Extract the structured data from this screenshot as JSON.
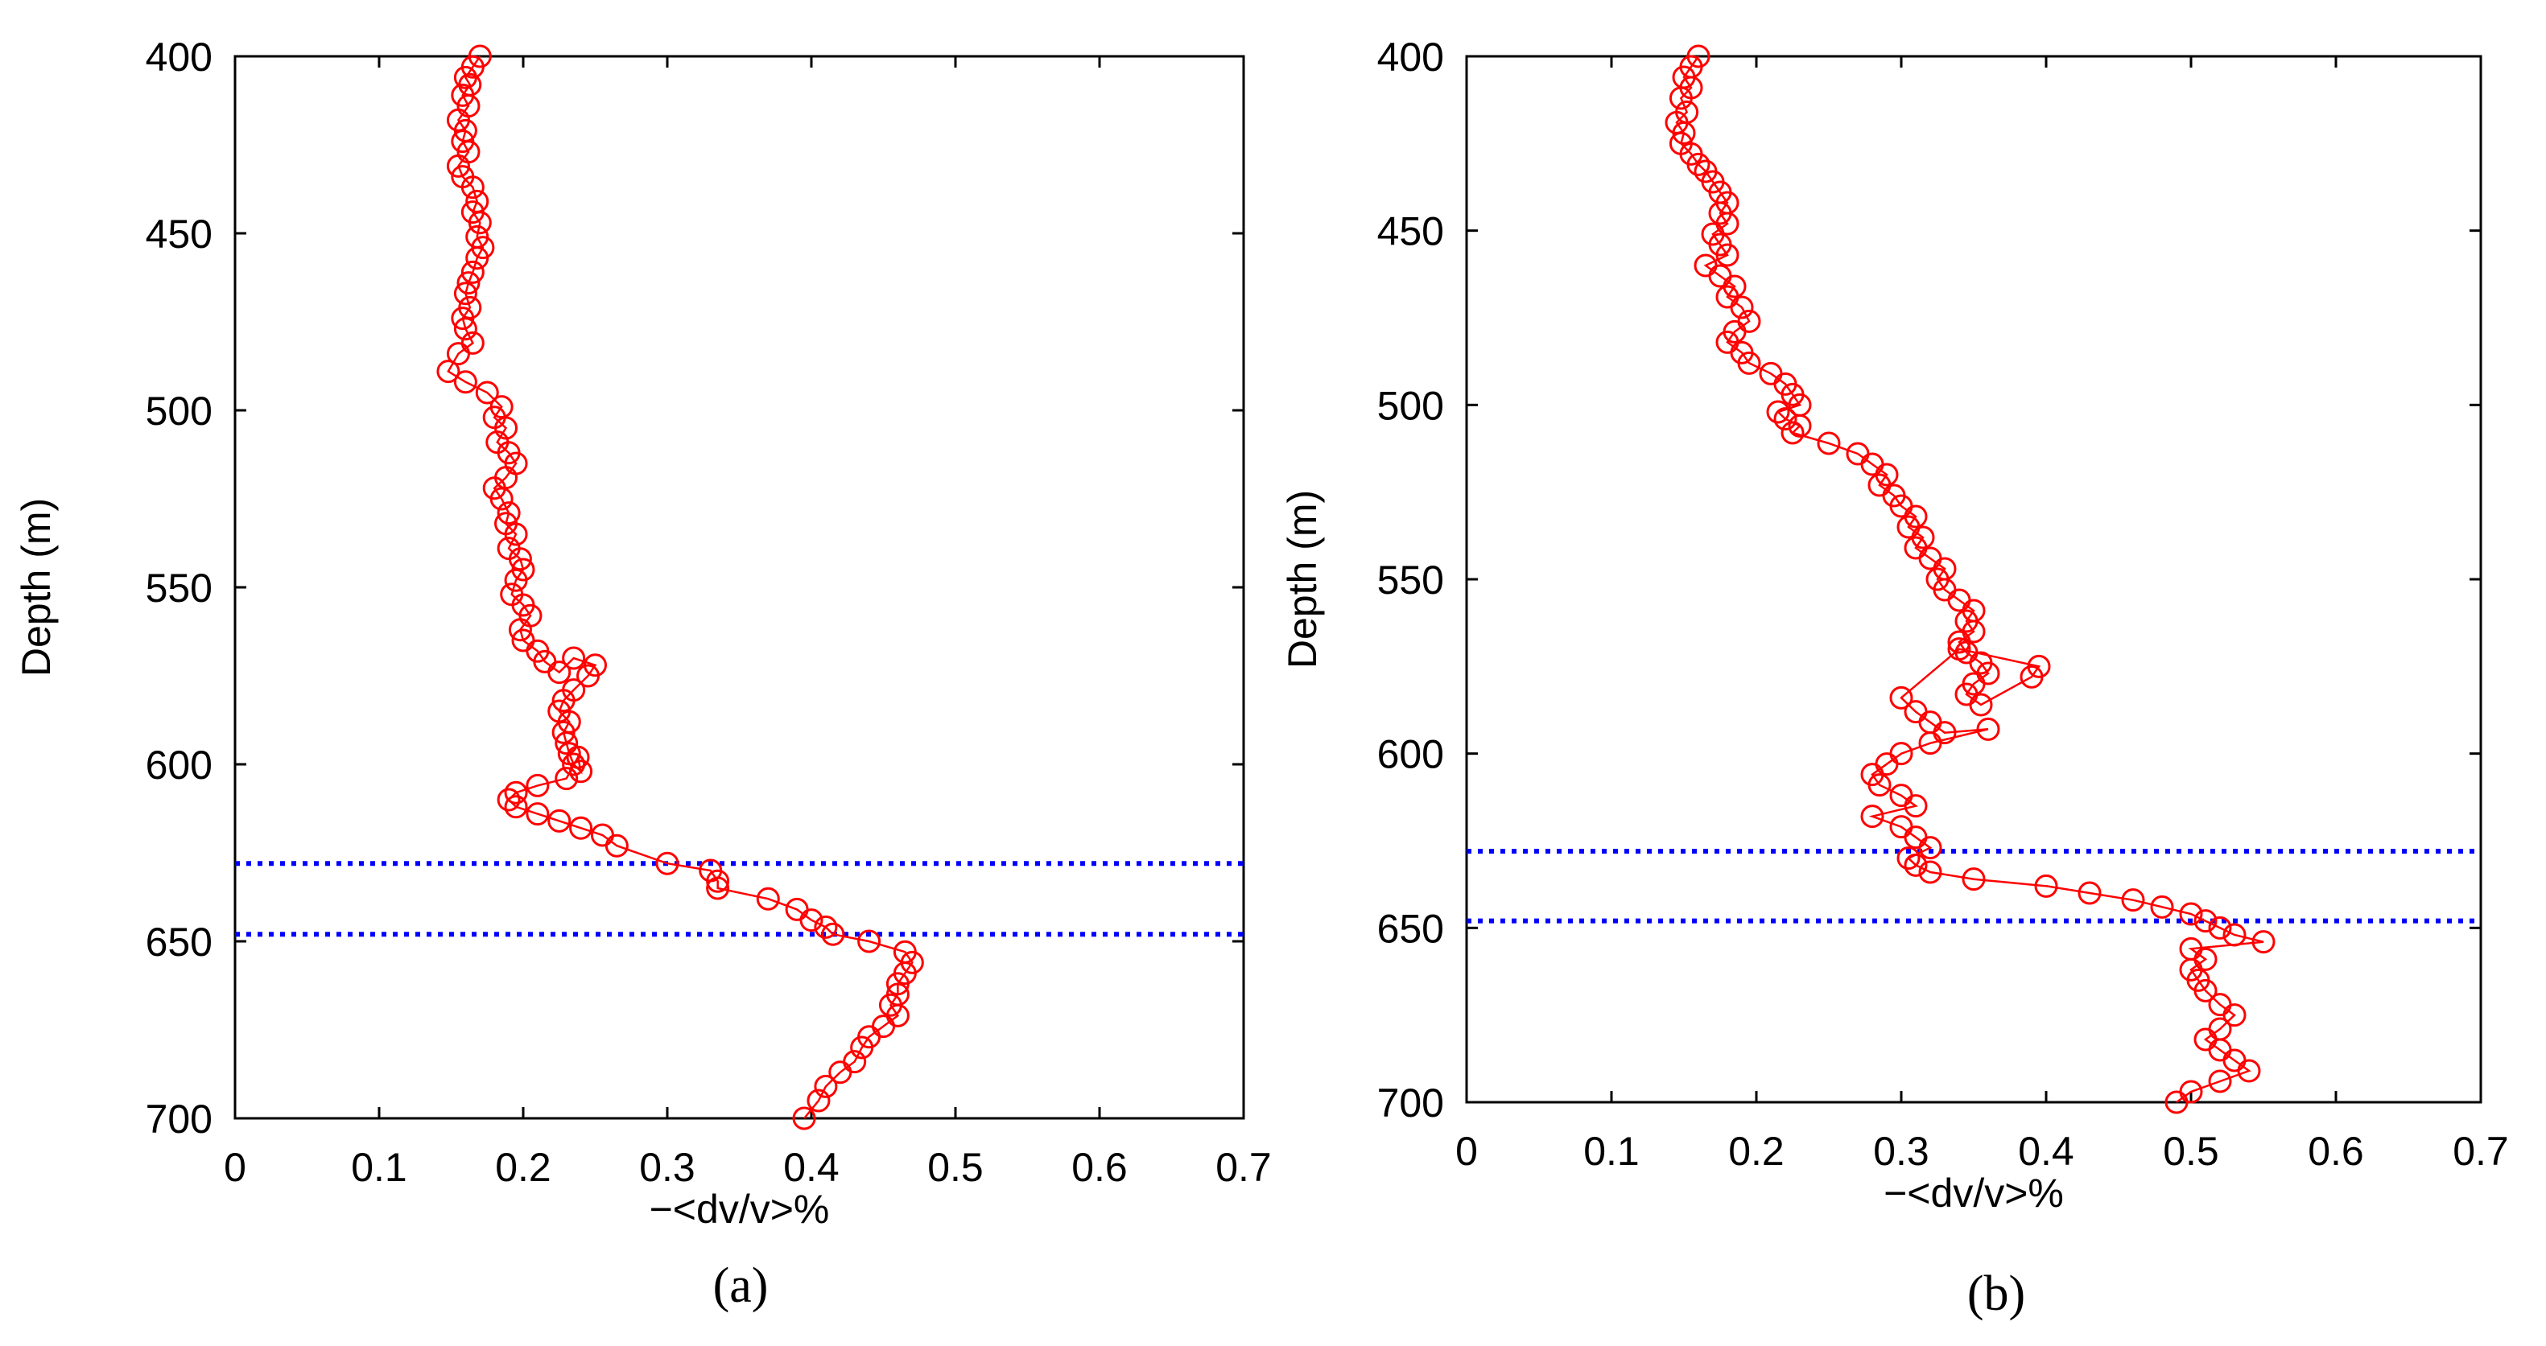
{
  "chart_data": [
    {
      "panel": "(a)",
      "type": "line",
      "marker": "circle",
      "series_color": "#ff0000",
      "reference_line_color": "#0000ff",
      "xlabel": "−<dv/v>%",
      "ylabel": "Depth (m)",
      "xlim": [
        0,
        0.7
      ],
      "ylim": [
        400,
        700
      ],
      "y_reversed": true,
      "xticks": [
        "0",
        "0.1",
        "0.2",
        "0.3",
        "0.4",
        "0.5",
        "0.6",
        "0.7"
      ],
      "yticks": [
        "400",
        "450",
        "500",
        "550",
        "600",
        "650",
        "700"
      ],
      "reference_depths": [
        628,
        648
      ],
      "x": [
        0.17,
        0.165,
        0.16,
        0.163,
        0.158,
        0.162,
        0.155,
        0.16,
        0.158,
        0.162,
        0.155,
        0.158,
        0.165,
        0.168,
        0.165,
        0.17,
        0.168,
        0.172,
        0.168,
        0.165,
        0.162,
        0.16,
        0.163,
        0.158,
        0.16,
        0.165,
        0.155,
        0.148,
        0.16,
        0.175,
        0.185,
        0.18,
        0.188,
        0.182,
        0.19,
        0.195,
        0.188,
        0.18,
        0.185,
        0.19,
        0.188,
        0.195,
        0.19,
        0.198,
        0.2,
        0.195,
        0.192,
        0.2,
        0.205,
        0.198,
        0.2,
        0.21,
        0.215,
        0.225,
        0.235,
        0.25,
        0.245,
        0.235,
        0.228,
        0.225,
        0.232,
        0.228,
        0.23,
        0.232,
        0.235,
        0.24,
        0.238,
        0.23,
        0.21,
        0.195,
        0.19,
        0.195,
        0.21,
        0.225,
        0.24,
        0.255,
        0.265,
        0.3,
        0.33,
        0.335,
        0.335,
        0.37,
        0.39,
        0.4,
        0.41,
        0.415,
        0.44,
        0.465,
        0.47,
        0.465,
        0.46,
        0.46,
        0.455,
        0.46,
        0.45,
        0.44,
        0.435,
        0.43,
        0.42,
        0.41,
        0.405,
        0.395
      ],
      "y": [
        400,
        403,
        406,
        408,
        411,
        414,
        418,
        421,
        424,
        427,
        431,
        434,
        437,
        441,
        444,
        447,
        451,
        454,
        457,
        461,
        464,
        467,
        471,
        474,
        477,
        481,
        484,
        489,
        492,
        495,
        499,
        502,
        505,
        509,
        512,
        515,
        519,
        522,
        525,
        529,
        532,
        535,
        539,
        542,
        545,
        548,
        552,
        555,
        558,
        562,
        565,
        568,
        571,
        574,
        570,
        572,
        575,
        579,
        582,
        585,
        588,
        591,
        594,
        597,
        600,
        602,
        598,
        604,
        606,
        608,
        610,
        612,
        614,
        616,
        618,
        620,
        623,
        628,
        630,
        633,
        635,
        638,
        641,
        644,
        646,
        648,
        650,
        653,
        656,
        659,
        662,
        665,
        668,
        671,
        674,
        677,
        680,
        684,
        687,
        691,
        695,
        700
      ]
    },
    {
      "panel": "(b)",
      "type": "line",
      "marker": "circle",
      "series_color": "#ff0000",
      "reference_line_color": "#0000ff",
      "xlabel": "−<dv/v>%",
      "ylabel": "Depth (m)",
      "xlim": [
        0,
        0.7
      ],
      "ylim": [
        400,
        700
      ],
      "y_reversed": true,
      "xticks": [
        "0",
        "0.1",
        "0.2",
        "0.3",
        "0.4",
        "0.5",
        "0.6",
        "0.7"
      ],
      "yticks": [
        "400",
        "450",
        "500",
        "550",
        "600",
        "650",
        "700"
      ],
      "reference_depths": [
        628,
        648
      ],
      "x": [
        0.16,
        0.155,
        0.15,
        0.155,
        0.148,
        0.152,
        0.145,
        0.15,
        0.148,
        0.155,
        0.16,
        0.165,
        0.17,
        0.175,
        0.18,
        0.175,
        0.18,
        0.17,
        0.175,
        0.18,
        0.165,
        0.175,
        0.185,
        0.18,
        0.19,
        0.195,
        0.185,
        0.18,
        0.19,
        0.195,
        0.21,
        0.22,
        0.225,
        0.23,
        0.215,
        0.22,
        0.23,
        0.225,
        0.25,
        0.27,
        0.28,
        0.29,
        0.285,
        0.295,
        0.3,
        0.31,
        0.305,
        0.315,
        0.31,
        0.32,
        0.33,
        0.325,
        0.33,
        0.34,
        0.35,
        0.345,
        0.35,
        0.34,
        0.345,
        0.355,
        0.36,
        0.35,
        0.345,
        0.355,
        0.39,
        0.395,
        0.34,
        0.3,
        0.31,
        0.32,
        0.33,
        0.36,
        0.32,
        0.3,
        0.29,
        0.28,
        0.285,
        0.3,
        0.31,
        0.28,
        0.3,
        0.31,
        0.32,
        0.305,
        0.31,
        0.32,
        0.35,
        0.4,
        0.43,
        0.46,
        0.48,
        0.5,
        0.51,
        0.52,
        0.53,
        0.55,
        0.5,
        0.51,
        0.5,
        0.505,
        0.51,
        0.52,
        0.53,
        0.52,
        0.51,
        0.52,
        0.53,
        0.54,
        0.52,
        0.5,
        0.49
      ],
      "y": [
        400,
        403,
        406,
        409,
        412,
        416,
        419,
        422,
        425,
        428,
        431,
        433,
        436,
        439,
        442,
        445,
        448,
        451,
        454,
        457,
        460,
        463,
        466,
        469,
        472,
        476,
        479,
        482,
        485,
        488,
        491,
        494,
        497,
        500,
        502,
        504,
        506,
        508,
        511,
        514,
        517,
        520,
        523,
        526,
        529,
        532,
        535,
        538,
        541,
        544,
        547,
        550,
        553,
        556,
        559,
        562,
        565,
        568,
        571,
        574,
        577,
        580,
        583,
        586,
        578,
        575,
        570,
        584,
        588,
        591,
        594,
        593,
        597,
        600,
        603,
        606,
        609,
        612,
        615,
        618,
        621,
        624,
        627,
        630,
        632,
        634,
        636,
        638,
        640,
        642,
        644,
        646,
        648,
        650,
        652,
        654,
        656,
        659,
        662,
        665,
        668,
        672,
        675,
        679,
        682,
        685,
        688,
        691,
        694,
        697,
        700
      ]
    }
  ]
}
